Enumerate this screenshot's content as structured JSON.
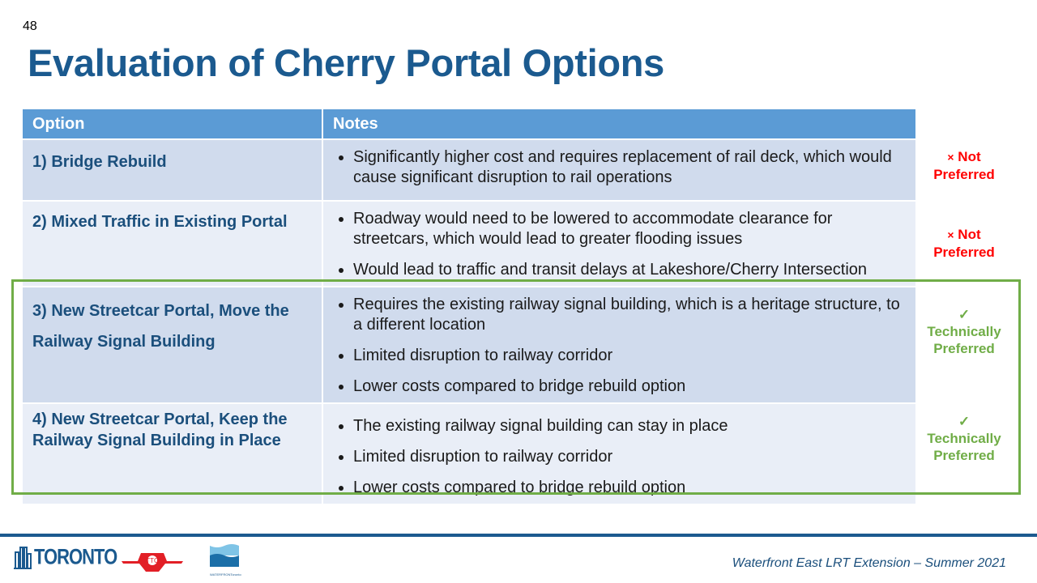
{
  "page_number": "48",
  "title": "Evaluation of Cherry Portal Options",
  "table": {
    "headers": [
      "Option",
      "Notes"
    ],
    "rows": [
      {
        "option": "1) Bridge Rebuild",
        "notes": [
          "Significantly higher cost and requires replacement of rail deck, which would cause significant disruption to rail operations"
        ],
        "status_icon": "×",
        "status": "Not Preferred"
      },
      {
        "option": "2) Mixed Traffic in Existing Portal",
        "notes": [
          "Roadway would need to be lowered to accommodate clearance for streetcars, which would lead to greater flooding issues",
          "Would lead to traffic and transit delays at Lakeshore/Cherry Intersection"
        ],
        "status_icon": "×",
        "status": "Not Preferred"
      },
      {
        "option": "3) New Streetcar Portal, Move the Railway Signal Building",
        "notes": [
          "Requires the existing railway signal building, which is a heritage structure, to a different location",
          "Limited disruption to railway corridor",
          "Lower costs compared to bridge rebuild option"
        ],
        "status_icon": "✓",
        "status": "Technically Preferred"
      },
      {
        "option": "4) New Streetcar Portal, Keep the Railway Signal Building in Place",
        "notes": [
          "The existing railway signal building can stay in place",
          "Limited disruption to railway corridor",
          "Lower costs compared to bridge rebuild option"
        ],
        "status_icon": "✓",
        "status": "Technically Preferred"
      }
    ]
  },
  "colors": {
    "header": "#5b9bd5",
    "title": "#1b5a8f",
    "not_preferred": "#ff0000",
    "preferred": "#70ad47"
  },
  "footer": {
    "text": "Waterfront East LRT Extension – Summer 2021",
    "logos": [
      "TORONTO",
      "TTC",
      "WATERFRONToronto"
    ]
  }
}
